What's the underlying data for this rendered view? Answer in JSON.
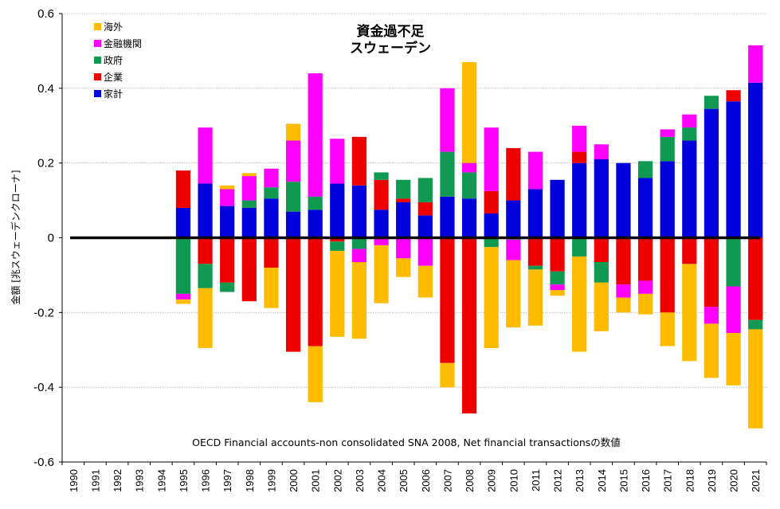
{
  "chart_data": {
    "type": "bar",
    "stacked": true,
    "title": "資金過不足",
    "subtitle": "スウェーデン",
    "ylabel": "金額 [兆スウェーデンクローナ]",
    "xlabel": "",
    "ylim": [
      -0.6,
      0.6
    ],
    "yticks": [
      -0.6,
      -0.4,
      -0.2,
      0,
      0.2,
      0.4,
      0.6
    ],
    "ytick_labels": [
      "-0.6",
      "-0.4",
      "-0.2",
      "0",
      "0.2",
      "0.4",
      "0.6"
    ],
    "grid": true,
    "legend_position": "top-left",
    "note": "OECD Financial accounts-non consolidated SNA 2008, Net financial transactionsの数値",
    "categories": [
      "1990",
      "1991",
      "1992",
      "1993",
      "1994",
      "1995",
      "1996",
      "1997",
      "1998",
      "1999",
      "2000",
      "2001",
      "2002",
      "2003",
      "2004",
      "2005",
      "2006",
      "2007",
      "2008",
      "2009",
      "2010",
      "2011",
      "2012",
      "2013",
      "2014",
      "2015",
      "2016",
      "2017",
      "2018",
      "2019",
      "2020",
      "2021"
    ],
    "legend_order": [
      "海外",
      "金融機関",
      "政府",
      "企業",
      "家計"
    ],
    "series": [
      {
        "name": "家計",
        "color": "#0000dd",
        "values": [
          null,
          null,
          null,
          null,
          null,
          0.08,
          0.145,
          0.085,
          0.08,
          0.105,
          0.07,
          0.075,
          0.145,
          0.14,
          0.075,
          0.095,
          0.06,
          0.11,
          0.105,
          0.065,
          0.1,
          0.13,
          0.155,
          0.2,
          0.21,
          0.2,
          0.16,
          0.205,
          0.26,
          0.345,
          0.365,
          0.415
        ]
      },
      {
        "name": "企業",
        "color": "#ee0000",
        "values": [
          null,
          null,
          null,
          null,
          null,
          0.1,
          -0.07,
          -0.12,
          -0.17,
          -0.08,
          -0.305,
          -0.29,
          -0.01,
          0.13,
          0.08,
          0.01,
          0.035,
          -0.335,
          -0.47,
          0.06,
          0.14,
          -0.075,
          -0.09,
          0.03,
          -0.065,
          -0.125,
          -0.115,
          -0.2,
          -0.07,
          -0.185,
          0.03,
          -0.22
        ]
      },
      {
        "name": "政府",
        "color": "#109950",
        "values": [
          null,
          null,
          null,
          null,
          null,
          -0.15,
          -0.065,
          -0.025,
          0.02,
          0.03,
          0.08,
          0.035,
          -0.025,
          -0.03,
          0.02,
          0.05,
          0.065,
          0.12,
          0.07,
          -0.025,
          -0.005,
          -0.01,
          -0.035,
          -0.05,
          -0.055,
          0.0,
          0.045,
          0.065,
          0.035,
          0.035,
          -0.13,
          -0.025
        ]
      },
      {
        "name": "金融機関",
        "color": "#ff00ff",
        "values": [
          null,
          null,
          null,
          null,
          null,
          -0.015,
          0.15,
          0.045,
          0.065,
          0.05,
          0.11,
          0.33,
          0.12,
          -0.035,
          -0.02,
          -0.055,
          -0.075,
          0.17,
          0.025,
          0.17,
          -0.055,
          0.1,
          -0.015,
          0.07,
          0.04,
          -0.035,
          -0.035,
          0.02,
          0.035,
          -0.045,
          -0.125,
          0.1
        ]
      },
      {
        "name": "海外",
        "color": "#ffbb00",
        "values": [
          null,
          null,
          null,
          null,
          null,
          -0.012,
          -0.16,
          0.01,
          0.008,
          -0.108,
          0.045,
          -0.15,
          -0.23,
          -0.205,
          -0.155,
          -0.05,
          -0.085,
          -0.065,
          0.27,
          -0.27,
          -0.18,
          -0.15,
          -0.015,
          -0.255,
          -0.13,
          -0.04,
          -0.055,
          -0.09,
          -0.26,
          -0.145,
          -0.14,
          -0.265
        ]
      }
    ]
  }
}
